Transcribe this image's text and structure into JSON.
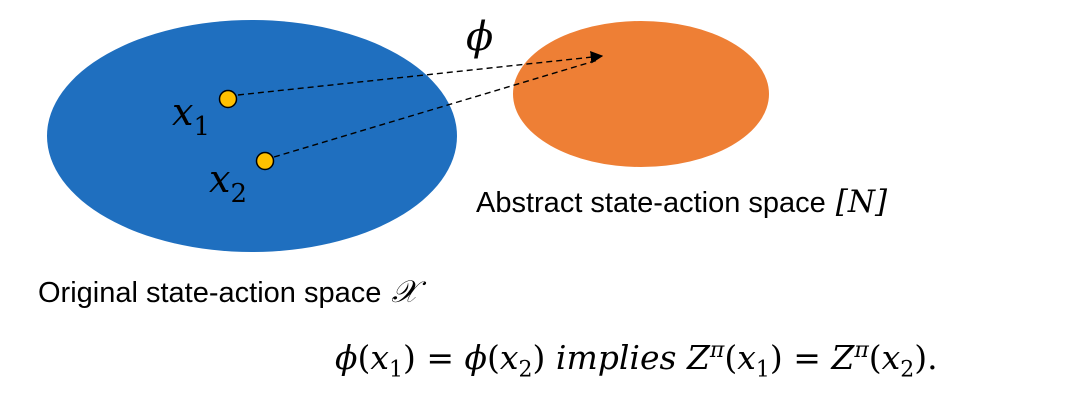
{
  "colors": {
    "original_space": "#1f6fbf",
    "abstract_space": "#ee7f35",
    "point_fill": "#ffc000",
    "point_stroke": "#000000",
    "arrow": "#000000"
  },
  "labels": {
    "mapping_symbol": "ϕ",
    "point1": {
      "base": "x",
      "sub": "1"
    },
    "point2": {
      "base": "x",
      "sub": "2"
    },
    "abstract_space_caption": "Abstract state-action space",
    "abstract_space_symbol": "[N]",
    "original_space_caption": "Original state-action space",
    "original_space_symbol": "𝒳"
  },
  "formula": {
    "phi": "ϕ",
    "x": "x",
    "sub1": "1",
    "sub2": "2",
    "eq": "=",
    "implies": "implies",
    "Z": "Z",
    "pi": "π",
    "open": "(",
    "close": ")",
    "end": "."
  }
}
